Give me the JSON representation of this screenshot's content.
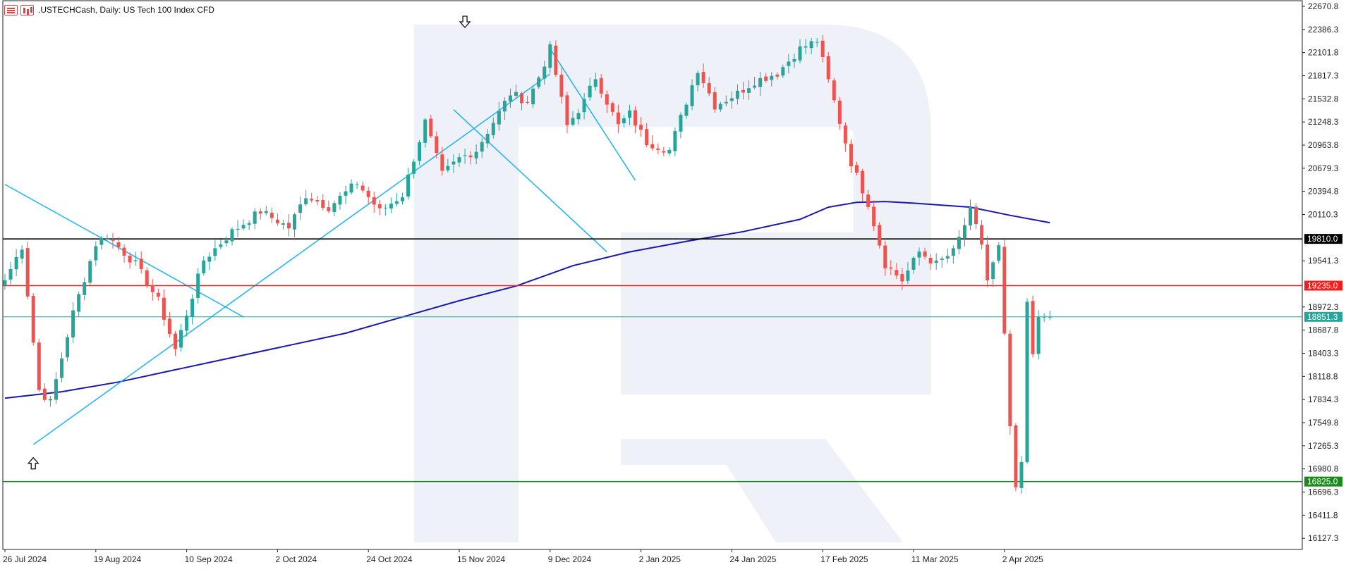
{
  "header": {
    "title": ".USTECHCash, Daily:  US Tech 100 Index CFD",
    "icons": [
      "quote-list-icon",
      "bar-chart-icon"
    ]
  },
  "chart_data": {
    "type": "candlestick",
    "ylim": [
      15990,
      22740
    ],
    "y_ticks": [
      "22670.8",
      "22386.3",
      "22101.8",
      "21817.3",
      "21532.8",
      "21248.3",
      "20963.8",
      "20679.3",
      "20394.8",
      "20110.3",
      "19541.3",
      "18972.3",
      "18687.8",
      "18403.3",
      "18118.8",
      "17834.3",
      "17549.8",
      "17265.3",
      "16980.8",
      "16696.3",
      "16411.8",
      "16127.3"
    ],
    "x_labels": [
      {
        "label": "26 Jul 2024",
        "index": 0
      },
      {
        "label": "19 Aug 2024",
        "index": 16
      },
      {
        "label": "10 Sep 2024",
        "index": 32
      },
      {
        "label": "2 Oct 2024",
        "index": 48
      },
      {
        "label": "24 Oct 2024",
        "index": 64
      },
      {
        "label": "15 Nov 2024",
        "index": 80
      },
      {
        "label": "9 Dec 2024",
        "index": 96
      },
      {
        "label": "2 Jan 2025",
        "index": 112
      },
      {
        "label": "24 Jan 2025",
        "index": 128
      },
      {
        "label": "17 Feb 2025",
        "index": 144
      },
      {
        "label": "11 Mar 2025",
        "index": 160
      },
      {
        "label": "2 Apr 2025",
        "index": 176
      }
    ],
    "colors": {
      "up": "#26a69a",
      "down": "#ef5350",
      "ma": "#1a1aa8",
      "trend": "#29b6f6"
    },
    "levels": [
      {
        "value": 19810.0,
        "label": "19810.0",
        "color": "#000000"
      },
      {
        "value": 19235.0,
        "label": "19235.0",
        "color": "#ff1a1a"
      },
      {
        "value": 18851.3,
        "label": "18851.3",
        "color": "#26a69a"
      },
      {
        "value": 16825.0,
        "label": "16825.0",
        "color": "#1a8a1a"
      }
    ],
    "anchors": [
      {
        "i": 0,
        "c": 19300
      },
      {
        "i": 3,
        "c": 19720
      },
      {
        "i": 6,
        "c": 17950
      },
      {
        "i": 8,
        "c": 17800
      },
      {
        "i": 12,
        "c": 18900
      },
      {
        "i": 16,
        "c": 19750
      },
      {
        "i": 18,
        "c": 19850
      },
      {
        "i": 23,
        "c": 19500
      },
      {
        "i": 27,
        "c": 19050
      },
      {
        "i": 30,
        "c": 18450
      },
      {
        "i": 35,
        "c": 19550
      },
      {
        "i": 40,
        "c": 19900
      },
      {
        "i": 45,
        "c": 20150
      },
      {
        "i": 50,
        "c": 19950
      },
      {
        "i": 53,
        "c": 20350
      },
      {
        "i": 57,
        "c": 20200
      },
      {
        "i": 62,
        "c": 20500
      },
      {
        "i": 66,
        "c": 20150
      },
      {
        "i": 70,
        "c": 20350
      },
      {
        "i": 72,
        "c": 20800
      },
      {
        "i": 74,
        "c": 21250
      },
      {
        "i": 77,
        "c": 20600
      },
      {
        "i": 80,
        "c": 20800
      },
      {
        "i": 83,
        "c": 20900
      },
      {
        "i": 86,
        "c": 21250
      },
      {
        "i": 89,
        "c": 21600
      },
      {
        "i": 92,
        "c": 21500
      },
      {
        "i": 94,
        "c": 21800
      },
      {
        "i": 96,
        "c": 22150
      },
      {
        "i": 99,
        "c": 21200
      },
      {
        "i": 102,
        "c": 21500
      },
      {
        "i": 104,
        "c": 21800
      },
      {
        "i": 108,
        "c": 21200
      },
      {
        "i": 110,
        "c": 21350
      },
      {
        "i": 113,
        "c": 21000
      },
      {
        "i": 117,
        "c": 20900
      },
      {
        "i": 120,
        "c": 21500
      },
      {
        "i": 122,
        "c": 21900
      },
      {
        "i": 125,
        "c": 21450
      },
      {
        "i": 129,
        "c": 21600
      },
      {
        "i": 132,
        "c": 21750
      },
      {
        "i": 136,
        "c": 21850
      },
      {
        "i": 140,
        "c": 22150
      },
      {
        "i": 143,
        "c": 22250
      },
      {
        "i": 146,
        "c": 21500
      },
      {
        "i": 149,
        "c": 20750
      },
      {
        "i": 152,
        "c": 20250
      },
      {
        "i": 155,
        "c": 19500
      },
      {
        "i": 158,
        "c": 19300
      },
      {
        "i": 161,
        "c": 19650
      },
      {
        "i": 164,
        "c": 19500
      },
      {
        "i": 167,
        "c": 19650
      },
      {
        "i": 170,
        "c": 20150
      },
      {
        "i": 172,
        "c": 19750
      },
      {
        "i": 173,
        "c": 19300
      },
      {
        "i": 175,
        "c": 19700
      },
      {
        "i": 176,
        "c": 18600
      },
      {
        "i": 177,
        "c": 17500
      },
      {
        "i": 178,
        "c": 16700
      },
      {
        "i": 179,
        "c": 17050
      },
      {
        "i": 180,
        "c": 19000
      },
      {
        "i": 181,
        "c": 18400
      },
      {
        "i": 182,
        "c": 18900
      },
      {
        "i": 183,
        "c": 18800
      },
      {
        "i": 184,
        "c": 18851.3
      }
    ],
    "ma_points": [
      {
        "i": 0,
        "v": 17850
      },
      {
        "i": 10,
        "v": 17930
      },
      {
        "i": 20,
        "v": 18050
      },
      {
        "i": 30,
        "v": 18200
      },
      {
        "i": 40,
        "v": 18350
      },
      {
        "i": 50,
        "v": 18500
      },
      {
        "i": 60,
        "v": 18650
      },
      {
        "i": 70,
        "v": 18850
      },
      {
        "i": 80,
        "v": 19050
      },
      {
        "i": 90,
        "v": 19230
      },
      {
        "i": 100,
        "v": 19480
      },
      {
        "i": 110,
        "v": 19650
      },
      {
        "i": 120,
        "v": 19780
      },
      {
        "i": 130,
        "v": 19900
      },
      {
        "i": 140,
        "v": 20050
      },
      {
        "i": 145,
        "v": 20200
      },
      {
        "i": 150,
        "v": 20260
      },
      {
        "i": 155,
        "v": 20270
      },
      {
        "i": 160,
        "v": 20250
      },
      {
        "i": 170,
        "v": 20200
      },
      {
        "i": 177,
        "v": 20100
      },
      {
        "i": 184,
        "v": 20010
      }
    ],
    "trendlines": [
      {
        "i1": 0,
        "v1": 20480,
        "i2": 42,
        "v2": 18850
      },
      {
        "i1": 5,
        "v1": 17280,
        "i2": 96,
        "v2": 21840
      },
      {
        "i1": 96,
        "v1": 22150,
        "i2": 111,
        "v2": 20530
      },
      {
        "i1": 79,
        "v1": 21400,
        "i2": 106,
        "v2": 19650
      }
    ],
    "arrows": [
      {
        "i": 5,
        "v": 17050,
        "dir": "up"
      },
      {
        "i": 81,
        "v": 22480,
        "dir": "down"
      }
    ]
  }
}
